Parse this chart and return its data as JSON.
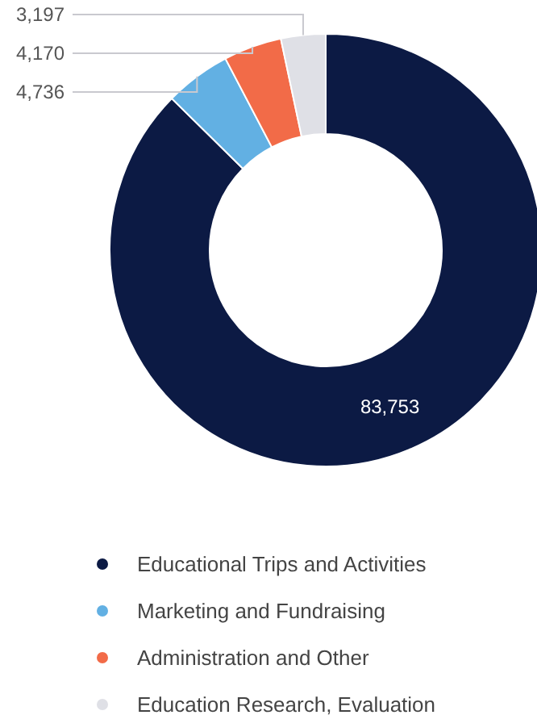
{
  "chart_data": {
    "type": "donut",
    "categories": [
      "Educational Trips and Activities",
      "Marketing and Fundraising",
      "Administration and Other",
      "Education Research, Evaluation"
    ],
    "values": [
      83753,
      4736,
      4170,
      3197
    ],
    "colors": [
      "#0c1a44",
      "#62b0e3",
      "#f26b48",
      "#dfe0e6"
    ],
    "value_labels": [
      "83,753",
      "4,736",
      "4,170",
      "3,197"
    ],
    "legend": "bottom"
  }
}
